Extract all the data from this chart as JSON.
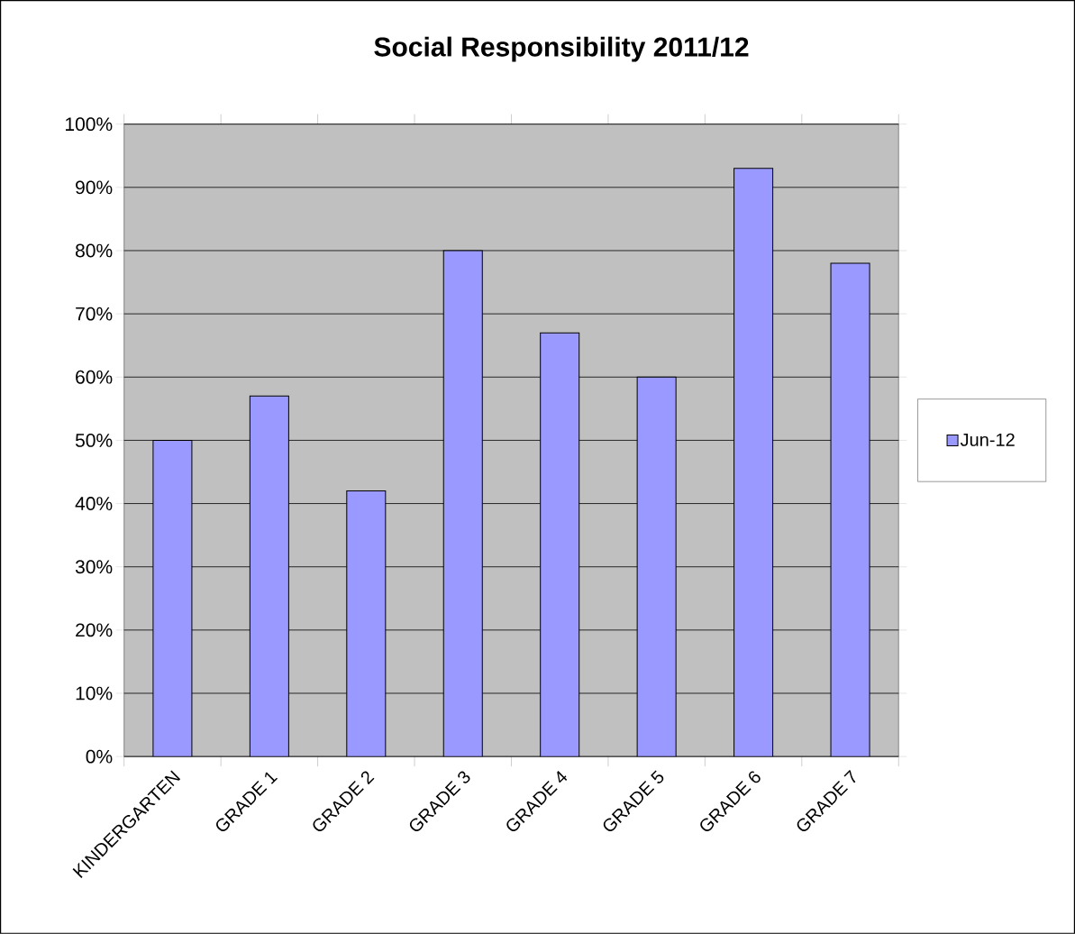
{
  "chart_data": {
    "type": "bar",
    "title": "Social Responsibility 2011/12",
    "categories": [
      "KINDERGARTEN",
      "GRADE 1",
      "GRADE 2",
      "GRADE 3",
      "GRADE 4",
      "GRADE 5",
      "GRADE 6",
      "GRADE 7"
    ],
    "series": [
      {
        "name": "Jun-12",
        "color": "#9999ff",
        "values": [
          50,
          57,
          42,
          80,
          67,
          60,
          93,
          78
        ]
      }
    ],
    "ylim": [
      0,
      100
    ],
    "yticks": [
      {
        "value": 0,
        "label": "0%"
      },
      {
        "value": 10,
        "label": "10%"
      },
      {
        "value": 20,
        "label": "20%"
      },
      {
        "value": 30,
        "label": "30%"
      },
      {
        "value": 40,
        "label": "40%"
      },
      {
        "value": 50,
        "label": "50%"
      },
      {
        "value": 60,
        "label": "60%"
      },
      {
        "value": 70,
        "label": "70%"
      },
      {
        "value": 80,
        "label": "80%"
      },
      {
        "value": 90,
        "label": "90%"
      },
      {
        "value": 100,
        "label": "100%"
      }
    ],
    "grid": "y",
    "legend": "right"
  }
}
